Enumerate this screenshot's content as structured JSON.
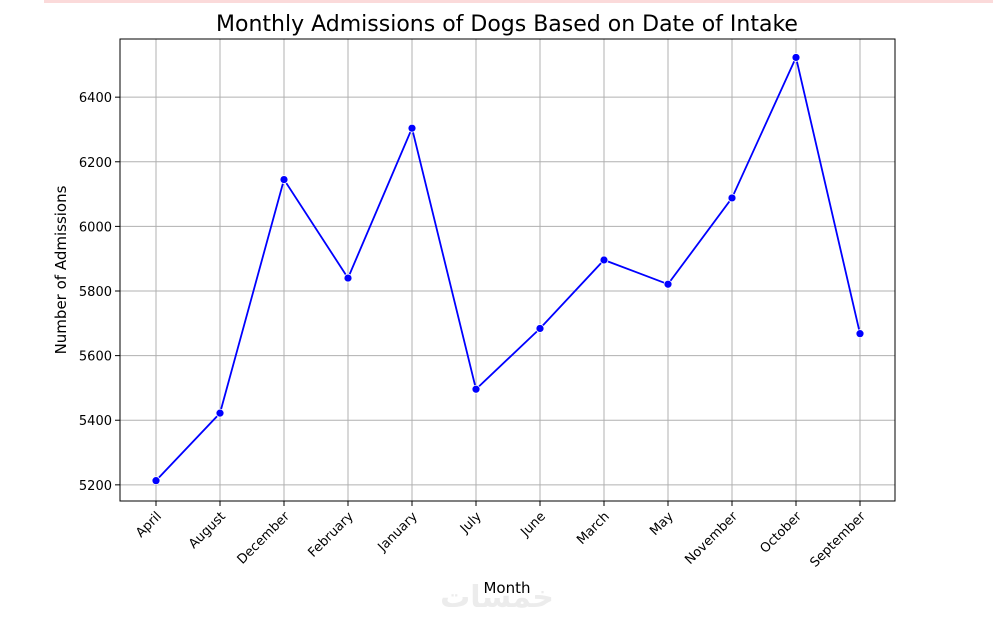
{
  "chart_data": {
    "type": "line",
    "title": "Monthly Admissions of Dogs Based on Date of Intake",
    "xlabel": "Month",
    "ylabel": "Number of Admissions",
    "categories": [
      "April",
      "August",
      "December",
      "February",
      "January",
      "July",
      "June",
      "March",
      "May",
      "November",
      "October",
      "September"
    ],
    "series": [
      {
        "name": "Admissions",
        "values": [
          5213,
          5422,
          6145,
          5840,
          6304,
          5496,
          5684,
          5896,
          5821,
          6088,
          6523,
          5668
        ]
      }
    ],
    "ylim": [
      5150,
      6580
    ],
    "yticks": [
      5200,
      5400,
      5600,
      5800,
      6000,
      6200,
      6400
    ],
    "grid": true,
    "line_color": "#0000ff",
    "marker_color": "#0000ff",
    "grid_color": "#b0b0b0"
  },
  "watermark": {
    "text": "خمسات"
  }
}
